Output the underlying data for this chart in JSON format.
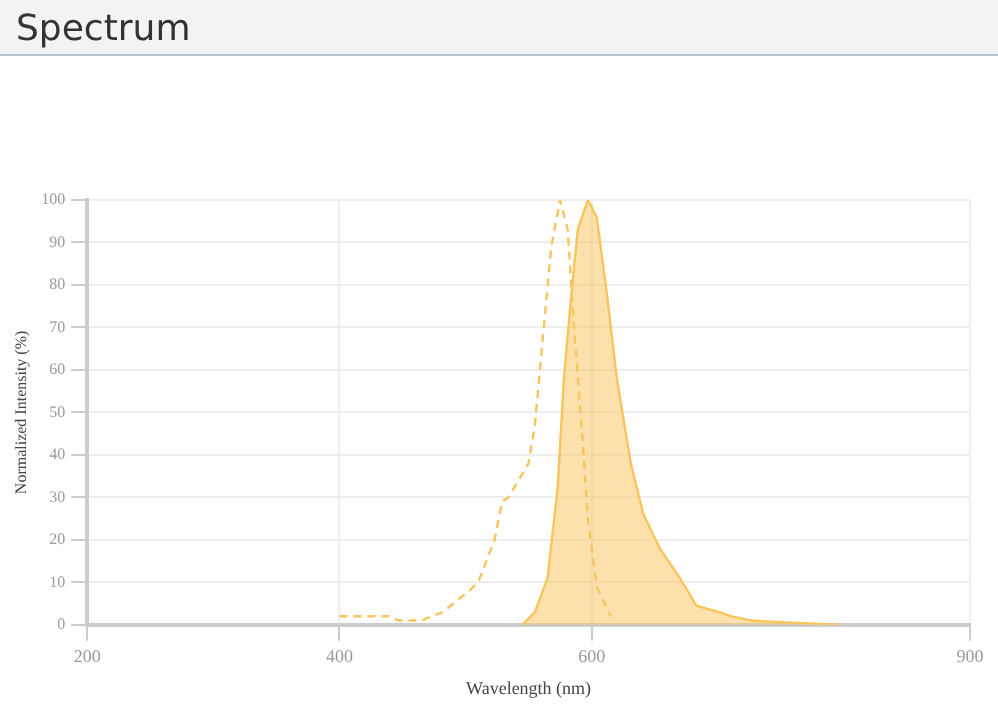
{
  "chart_data": {
    "type": "line",
    "title": "Spectrum",
    "xlabel": "Wavelength (nm)",
    "ylabel": "Normalized Intensity (%)",
    "xlim": [
      200,
      900
    ],
    "xticks": [
      200,
      400,
      600,
      900
    ],
    "ylim": [
      0,
      100
    ],
    "yticks": [
      0,
      10,
      20,
      30,
      40,
      50,
      60,
      70,
      80,
      90,
      100
    ],
    "grid": true,
    "legend": false,
    "marker": "none",
    "series": [
      {
        "type": "line",
        "line_style": "dashed",
        "color": "#f9c45a",
        "x": [
          400,
          440,
          447,
          465,
          482,
          503,
          510,
          523,
          529,
          534,
          550,
          555,
          562,
          568,
          575,
          581,
          586,
          592,
          597,
          604,
          615
        ],
        "values": [
          2,
          2,
          1,
          1,
          3,
          8,
          10,
          20,
          29,
          30,
          38,
          47,
          70,
          89,
          100,
          93,
          70,
          47,
          25,
          9,
          2
        ]
      },
      {
        "type": "area",
        "color": "#f9c45a",
        "x": [
          545,
          555,
          565,
          573,
          578,
          584,
          589,
          597,
          604,
          612,
          620,
          631,
          641,
          654,
          670,
          683,
          701,
          711,
          727,
          758,
          797
        ],
        "values": [
          0,
          3,
          11,
          32,
          58,
          78,
          93,
          100,
          96,
          78,
          58,
          38,
          26,
          18,
          11,
          4.5,
          3,
          2,
          1,
          0.5,
          0
        ]
      }
    ]
  }
}
